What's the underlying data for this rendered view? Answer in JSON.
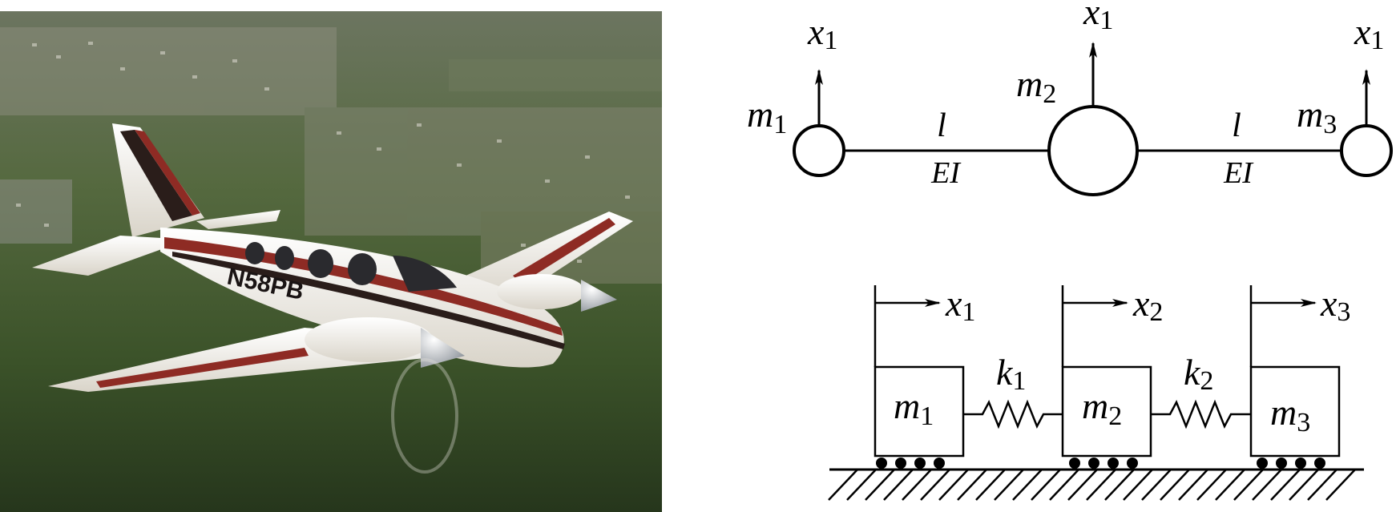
{
  "photo": {
    "tail_number": "N58PB",
    "colors": {
      "sky_far": "#5f6b55",
      "ground_mid": "#3f5a2f",
      "ground_dark": "#2c3d22",
      "fuselage": "#f4f1ea",
      "stripe_red": "#8e2b24",
      "stripe_dark": "#2a1d1a",
      "nose_spinner": "#c9cdd2"
    }
  },
  "beam_model": {
    "masses": [
      {
        "name": "m",
        "sub": "1"
      },
      {
        "name": "m",
        "sub": "2"
      },
      {
        "name": "m",
        "sub": "3"
      }
    ],
    "displacements": [
      {
        "name": "x",
        "sub": "1"
      },
      {
        "name": "x",
        "sub": "1"
      },
      {
        "name": "x",
        "sub": "1"
      }
    ],
    "segments": [
      {
        "length": "l",
        "stiffness": "EI"
      },
      {
        "length": "l",
        "stiffness": "EI"
      }
    ]
  },
  "spring_model": {
    "masses": [
      {
        "name": "m",
        "sub": "1"
      },
      {
        "name": "m",
        "sub": "2"
      },
      {
        "name": "m",
        "sub": "3"
      }
    ],
    "displacements": [
      {
        "name": "x",
        "sub": "1"
      },
      {
        "name": "x",
        "sub": "2"
      },
      {
        "name": "x",
        "sub": "3"
      }
    ],
    "springs": [
      {
        "name": "k",
        "sub": "1"
      },
      {
        "name": "k",
        "sub": "2"
      }
    ]
  }
}
